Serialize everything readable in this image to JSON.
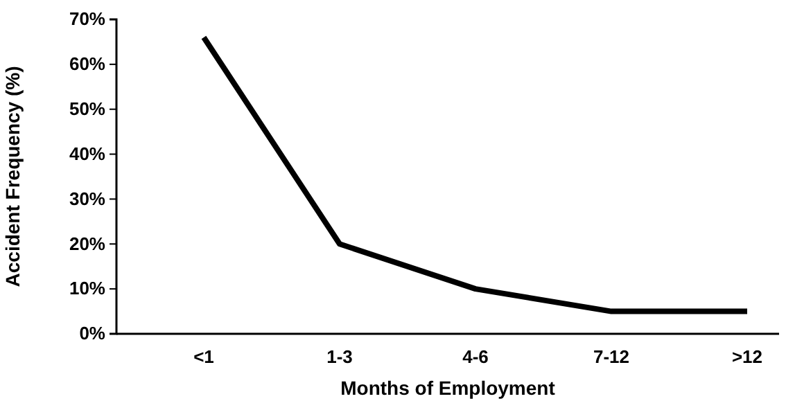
{
  "chart_data": {
    "type": "line",
    "xlabel": "Months of Employment",
    "ylabel": "Accident Frequency (%)",
    "categories": [
      "<1",
      "1-3",
      "4-6",
      "7-12",
      ">12"
    ],
    "series": [
      {
        "color": "#000000",
        "values": [
          66,
          20,
          10,
          5,
          5
        ]
      }
    ],
    "ylim": [
      0,
      70
    ],
    "yticks": [
      {
        "value": 0,
        "label": "0%"
      },
      {
        "value": 10,
        "label": "10%"
      },
      {
        "value": 20,
        "label": "20%"
      },
      {
        "value": 30,
        "label": "30%"
      },
      {
        "value": 40,
        "label": "40%"
      },
      {
        "value": 50,
        "label": "50%"
      },
      {
        "value": 60,
        "label": "60%"
      },
      {
        "value": 70,
        "label": "70%"
      }
    ],
    "grid": false,
    "marker": "none",
    "line_style": "solid"
  }
}
